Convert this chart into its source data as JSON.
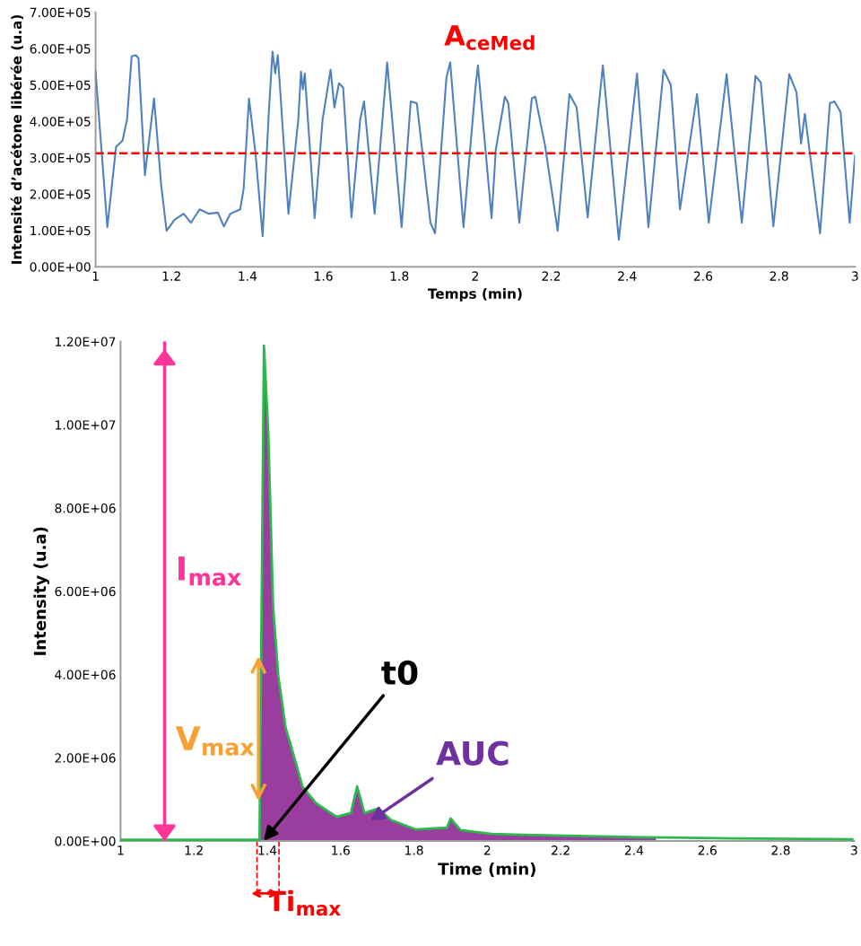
{
  "chart_data": [
    {
      "type": "line",
      "title": "A$_{ceMed}$",
      "xlabel": "Temps (min)",
      "ylabel": "Intensité d’acétone libérée (u.a)",
      "xlim": [
        1,
        3
      ],
      "ylim": [
        0,
        700000
      ],
      "xticks": [
        1,
        1.2,
        1.4,
        1.6,
        1.8,
        2,
        2.2,
        2.4,
        2.6,
        2.8,
        3
      ],
      "yticks": [
        {
          "value": 0,
          "label": "0.00E+00"
        },
        {
          "value": 100000,
          "label": "1.00E+05"
        },
        {
          "value": 200000,
          "label": "2.00E+05"
        },
        {
          "value": 300000,
          "label": "3.00E+05"
        },
        {
          "value": 400000,
          "label": "4.00E+05"
        },
        {
          "value": 500000,
          "label": "5.00E+05"
        },
        {
          "value": 600000,
          "label": "6.00E+05"
        },
        {
          "value": 700000,
          "label": "7.00E+05"
        }
      ],
      "grid": false,
      "marker": "none",
      "line_style": "solid",
      "ref_lines": [
        {
          "axis": "y",
          "value": 312000,
          "color": "#ff0000",
          "line_style": "dashed"
        }
      ],
      "series": [
        {
          "color": "#4f81bd",
          "x": [
            1.0,
            1.031,
            1.054,
            1.071,
            1.083,
            1.095,
            1.106,
            1.113,
            1.13,
            1.154,
            1.173,
            1.187,
            1.208,
            1.232,
            1.251,
            1.274,
            1.298,
            1.322,
            1.338,
            1.355,
            1.381,
            1.39,
            1.404,
            1.421,
            1.44,
            1.456,
            1.466,
            1.473,
            1.48,
            1.508,
            1.534,
            1.541,
            1.546,
            1.551,
            1.577,
            1.598,
            1.619,
            1.629,
            1.641,
            1.652,
            1.674,
            1.697,
            1.707,
            1.735,
            1.768,
            1.806,
            1.83,
            1.846,
            1.882,
            1.894,
            1.924,
            1.934,
            1.969,
            2.0,
            2.007,
            2.043,
            2.054,
            2.078,
            2.087,
            2.116,
            2.135,
            2.149,
            2.158,
            2.184,
            2.217,
            2.248,
            2.267,
            2.296,
            2.336,
            2.378,
            2.426,
            2.456,
            2.496,
            2.515,
            2.539,
            2.584,
            2.615,
            2.662,
            2.669,
            2.702,
            2.738,
            2.752,
            2.785,
            2.827,
            2.846,
            2.858,
            2.868,
            2.908,
            2.934,
            2.946,
            2.962,
            2.986,
            3.0
          ],
          "values": [
            537000,
            109000,
            330000,
            347000,
            406000,
            579000,
            582000,
            574000,
            252000,
            463000,
            223000,
            99000,
            129000,
            146000,
            121000,
            158000,
            146000,
            149000,
            111000,
            146000,
            158000,
            215000,
            463000,
            314000,
            84000,
            421000,
            592000,
            532000,
            582000,
            146000,
            406000,
            537000,
            488000,
            532000,
            134000,
            406000,
            542000,
            438000,
            505000,
            493000,
            136000,
            406000,
            455000,
            146000,
            562000,
            109000,
            455000,
            450000,
            121000,
            92000,
            520000,
            562000,
            109000,
            488000,
            554000,
            134000,
            322000,
            468000,
            450000,
            121000,
            322000,
            463000,
            468000,
            332000,
            99000,
            475000,
            438000,
            136000,
            554000,
            74000,
            532000,
            109000,
            542000,
            500000,
            158000,
            475000,
            121000,
            530000,
            455000,
            121000,
            525000,
            507000,
            111000,
            530000,
            480000,
            339000,
            421000,
            92000,
            450000,
            455000,
            426000,
            121000,
            305000
          ]
        }
      ]
    },
    {
      "type": "line",
      "xlabel": "Time (min)",
      "ylabel": "Intensity (u.a)",
      "xlim": [
        1,
        3
      ],
      "ylim": [
        0,
        12000000
      ],
      "xticks": [
        1,
        1.2,
        1.4,
        1.6,
        1.8,
        2,
        2.2,
        2.4,
        2.6,
        2.8,
        3
      ],
      "yticks": [
        {
          "value": 0,
          "label": "0.00E+00"
        },
        {
          "value": 2000000,
          "label": "2.00E+06"
        },
        {
          "value": 4000000,
          "label": "4.00E+06"
        },
        {
          "value": 6000000,
          "label": "6.00E+06"
        },
        {
          "value": 8000000,
          "label": "8.00E+06"
        },
        {
          "value": 10000000,
          "label": "1.00E+07"
        },
        {
          "value": 12000000,
          "label": "1.20E+07"
        }
      ],
      "grid": false,
      "marker": "none",
      "line_style": "solid",
      "ref_lines": [
        {
          "axis": "x",
          "value": 1.12,
          "color": "#ff3399",
          "label": "I$_{max}$"
        }
      ],
      "annotations": [
        "V$_{max}$",
        {
          "text": "t0",
          "x": 1.39,
          "y": 0
        },
        "AUC",
        "Ti$_{max}$"
      ],
      "series": [
        {
          "type": "area",
          "color": "#993d9e",
          "x": [
            1.379,
            1.391,
            1.403,
            1.416,
            1.43,
            1.45,
            1.467,
            1.496,
            1.533,
            1.589,
            1.628,
            1.645,
            1.665,
            1.702,
            1.738,
            1.804,
            1.89,
            1.9,
            1.927,
            2.012,
            2.098,
            2.425,
            2.46
          ],
          "values": [
            30000,
            11900000,
            9740000,
            5620000,
            3970000,
            2720000,
            2220000,
            1310000,
            910000,
            580000,
            670000,
            1310000,
            670000,
            780000,
            500000,
            280000,
            320000,
            540000,
            260000,
            170000,
            150000,
            90000,
            80000
          ]
        },
        {
          "color": "#2db84d",
          "x": [
            1.0,
            1.1,
            1.2,
            1.3,
            1.379,
            1.391,
            1.403,
            1.416,
            1.43,
            1.45,
            1.467,
            1.496,
            1.533,
            1.589,
            1.628,
            1.645,
            1.665,
            1.702,
            1.738,
            1.804,
            1.89,
            1.9,
            1.927,
            2.012,
            2.098,
            2.425,
            2.67,
            2.995
          ],
          "values": [
            30000,
            30000,
            30000,
            30000,
            30000,
            11900000,
            9740000,
            5620000,
            3970000,
            2720000,
            2220000,
            1310000,
            910000,
            580000,
            670000,
            1310000,
            670000,
            780000,
            500000,
            280000,
            320000,
            540000,
            260000,
            170000,
            150000,
            90000,
            60000,
            40000
          ]
        }
      ]
    }
  ]
}
